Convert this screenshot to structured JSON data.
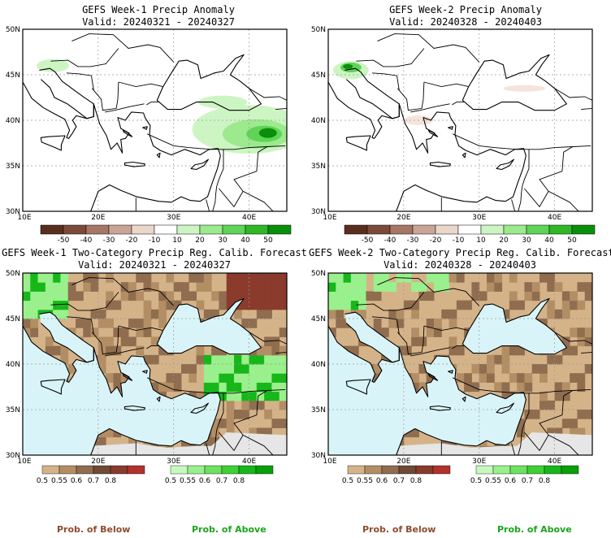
{
  "panels": [
    {
      "title": "GEFS Week-1 Precip Anomaly",
      "valid": "Valid: 20240321 - 20240327",
      "kind": "anomaly",
      "variant": 1
    },
    {
      "title": "GEFS Week-2 Precip Anomaly",
      "valid": "Valid: 20240328 - 20240403",
      "kind": "anomaly",
      "variant": 2
    },
    {
      "title": "GEFS Week-1 Two-Category Precip Reg. Calib. Forecast",
      "valid": "Valid: 20240321 - 20240327",
      "kind": "prob",
      "variant": 1
    },
    {
      "title": "GEFS Week-2 Two-Category Precip Reg. Calib. Forecast",
      "valid": "Valid: 20240328 - 20240403",
      "kind": "prob",
      "variant": 2
    }
  ],
  "map_axes": {
    "lat_labels": [
      "50N",
      "45N",
      "40N",
      "35N",
      "30N"
    ],
    "lon_labels": [
      "10E",
      "20E",
      "30E",
      "40E"
    ],
    "lon_range": [
      10,
      45
    ],
    "lat_range": [
      30,
      50
    ]
  },
  "anomaly_colorbar": {
    "labels": [
      "-50",
      "-40",
      "-30",
      "-20",
      "-10",
      "10",
      "20",
      "30",
      "40",
      "50"
    ],
    "colors": [
      "#5a2e1e",
      "#7d4a3a",
      "#a57565",
      "#c9a597",
      "#ead6cb",
      "#ffffff",
      "#cdf5c4",
      "#9ce98e",
      "#5fd457",
      "#2fb728",
      "#0a8f0a"
    ]
  },
  "prob_colorbars": {
    "below": {
      "labels": [
        "0.5",
        "0.55",
        "0.6",
        "0.7",
        "0.8"
      ],
      "colors": [
        "#d5b389",
        "#b38e64",
        "#8f6d4e",
        "#6f4a34",
        "#8a3b2c",
        "#b2322d"
      ]
    },
    "above": {
      "labels": [
        "0.5",
        "0.55",
        "0.6",
        "0.7",
        "0.8"
      ],
      "colors": [
        "#c8f8bf",
        "#9af08c",
        "#6ee15f",
        "#3fd034",
        "#17b71a",
        "#0a9e0a"
      ]
    }
  },
  "footer": {
    "below": "Prob. of Below",
    "above": "Prob. of Above"
  },
  "map_colors": {
    "sea": "#d9f4f8",
    "desert": "#e6e6e6",
    "below": "#d5b389",
    "below_dark": "#8f6d4e",
    "above_light": "#9af08c",
    "above_dark": "#17b71a"
  }
}
